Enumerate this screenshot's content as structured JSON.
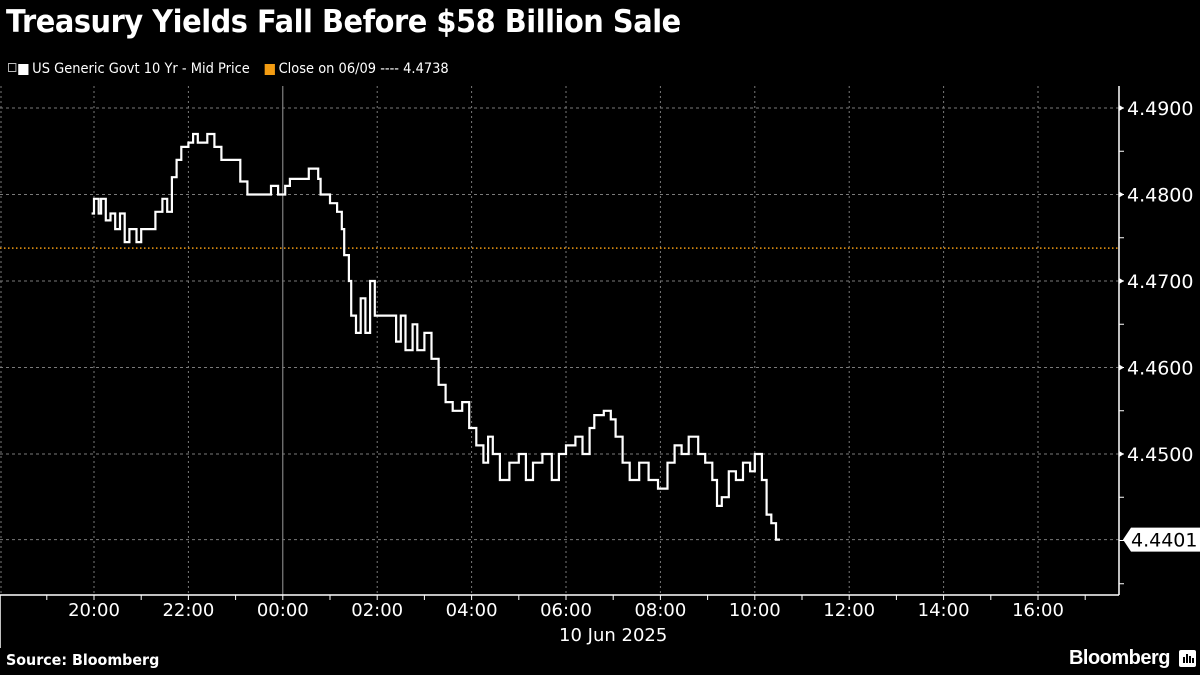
{
  "header": {
    "title": "Treasury Yields Fall Before $58 Billion Sale"
  },
  "legend": {
    "series_label": "US Generic Govt 10 Yr - Mid Price",
    "close_label": "Close on 06/09 ---- 4.4738",
    "series_color": "#ffffff",
    "close_color": "#f39c12"
  },
  "footer": {
    "source": "Source: Bloomberg",
    "brand": "Bloomberg"
  },
  "colors": {
    "background": "#000000",
    "line": "#ffffff",
    "close_line": "#f39c12",
    "grid": "#8a8a8a"
  },
  "chart_data": {
    "type": "line",
    "title": "Treasury Yields Fall Before $58 Billion Sale",
    "xlabel": "10 Jun 2025",
    "ylabel": "",
    "x_ticks": [
      "20:00",
      "22:00",
      "00:00",
      "02:00",
      "04:00",
      "06:00",
      "08:00",
      "10:00",
      "12:00",
      "14:00",
      "16:00"
    ],
    "y_ticks": [
      4.49,
      4.48,
      4.47,
      4.46,
      4.45
    ],
    "y_tick_labels": [
      "4.4900",
      "4.4800",
      "4.4700",
      "4.4600",
      "4.4500"
    ],
    "ylim": [
      4.436,
      4.494
    ],
    "last_value": 4.4401,
    "last_value_label": "4.4401",
    "date_label": "10 Jun 2025",
    "grid": true,
    "legend_position": "top-left",
    "reference_line": {
      "name": "Close on 06/09",
      "value": 4.4738
    },
    "series": [
      {
        "name": "US Generic Govt 10 Yr - Mid Price",
        "note": "x = hours after 20:00 (9 Jun), y = yield %",
        "points": [
          [
            -0.05,
            4.4778
          ],
          [
            0.0,
            4.4795
          ],
          [
            0.1,
            4.4778
          ],
          [
            0.15,
            4.4795
          ],
          [
            0.25,
            4.477
          ],
          [
            0.35,
            4.4778
          ],
          [
            0.45,
            4.476
          ],
          [
            0.55,
            4.4778
          ],
          [
            0.65,
            4.4745
          ],
          [
            0.75,
            4.476
          ],
          [
            0.9,
            4.4745
          ],
          [
            1.0,
            4.476
          ],
          [
            1.1,
            4.476
          ],
          [
            1.3,
            4.478
          ],
          [
            1.45,
            4.4795
          ],
          [
            1.55,
            4.478
          ],
          [
            1.65,
            4.482
          ],
          [
            1.75,
            4.484
          ],
          [
            1.85,
            4.4855
          ],
          [
            2.0,
            4.486
          ],
          [
            2.1,
            4.487
          ],
          [
            2.2,
            4.486
          ],
          [
            2.4,
            4.487
          ],
          [
            2.55,
            4.4855
          ],
          [
            2.7,
            4.484
          ],
          [
            3.0,
            4.484
          ],
          [
            3.1,
            4.4815
          ],
          [
            3.25,
            4.48
          ],
          [
            3.5,
            4.48
          ],
          [
            3.75,
            4.481
          ],
          [
            3.9,
            4.48
          ],
          [
            4.05,
            4.481
          ],
          [
            4.15,
            4.4818
          ],
          [
            4.5,
            4.4818
          ],
          [
            4.55,
            4.483
          ],
          [
            4.75,
            4.4818
          ],
          [
            4.8,
            4.48
          ],
          [
            5.0,
            4.479
          ],
          [
            5.15,
            4.478
          ],
          [
            5.25,
            4.476
          ],
          [
            5.3,
            4.473
          ],
          [
            5.4,
            4.47
          ],
          [
            5.45,
            4.466
          ],
          [
            5.55,
            4.464
          ],
          [
            5.65,
            4.468
          ],
          [
            5.75,
            4.464
          ],
          [
            5.85,
            4.47
          ],
          [
            5.95,
            4.466
          ],
          [
            6.3,
            4.466
          ],
          [
            6.4,
            4.463
          ],
          [
            6.5,
            4.466
          ],
          [
            6.6,
            4.462
          ],
          [
            6.75,
            4.465
          ],
          [
            6.85,
            4.462
          ],
          [
            7.0,
            4.464
          ],
          [
            7.15,
            4.461
          ],
          [
            7.3,
            4.458
          ],
          [
            7.45,
            4.456
          ],
          [
            7.6,
            4.455
          ],
          [
            7.8,
            4.456
          ],
          [
            7.95,
            4.453
          ],
          [
            8.1,
            4.451
          ],
          [
            8.25,
            4.449
          ],
          [
            8.35,
            4.452
          ],
          [
            8.45,
            4.45
          ],
          [
            8.6,
            4.447
          ],
          [
            8.8,
            4.449
          ],
          [
            9.0,
            4.45
          ],
          [
            9.15,
            4.447
          ],
          [
            9.3,
            4.449
          ],
          [
            9.5,
            4.45
          ],
          [
            9.7,
            4.447
          ],
          [
            9.85,
            4.45
          ],
          [
            10.0,
            4.451
          ],
          [
            10.2,
            4.452
          ],
          [
            10.35,
            4.45
          ],
          [
            10.5,
            4.453
          ],
          [
            10.6,
            4.4545
          ],
          [
            10.8,
            4.455
          ],
          [
            10.95,
            4.454
          ],
          [
            11.05,
            4.452
          ],
          [
            11.2,
            4.449
          ],
          [
            11.35,
            4.447
          ],
          [
            11.55,
            4.449
          ],
          [
            11.75,
            4.447
          ],
          [
            11.95,
            4.446
          ],
          [
            12.15,
            4.449
          ],
          [
            12.3,
            4.451
          ],
          [
            12.45,
            4.45
          ],
          [
            12.6,
            4.452
          ],
          [
            12.8,
            4.45
          ],
          [
            12.95,
            4.449
          ],
          [
            13.1,
            4.447
          ],
          [
            13.2,
            4.444
          ],
          [
            13.3,
            4.445
          ],
          [
            13.45,
            4.448
          ],
          [
            13.6,
            4.447
          ],
          [
            13.75,
            4.449
          ],
          [
            13.9,
            4.448
          ],
          [
            14.0,
            4.45
          ],
          [
            14.15,
            4.447
          ],
          [
            14.25,
            4.443
          ],
          [
            14.35,
            4.442
          ],
          [
            14.45,
            4.4401
          ]
        ]
      }
    ]
  }
}
